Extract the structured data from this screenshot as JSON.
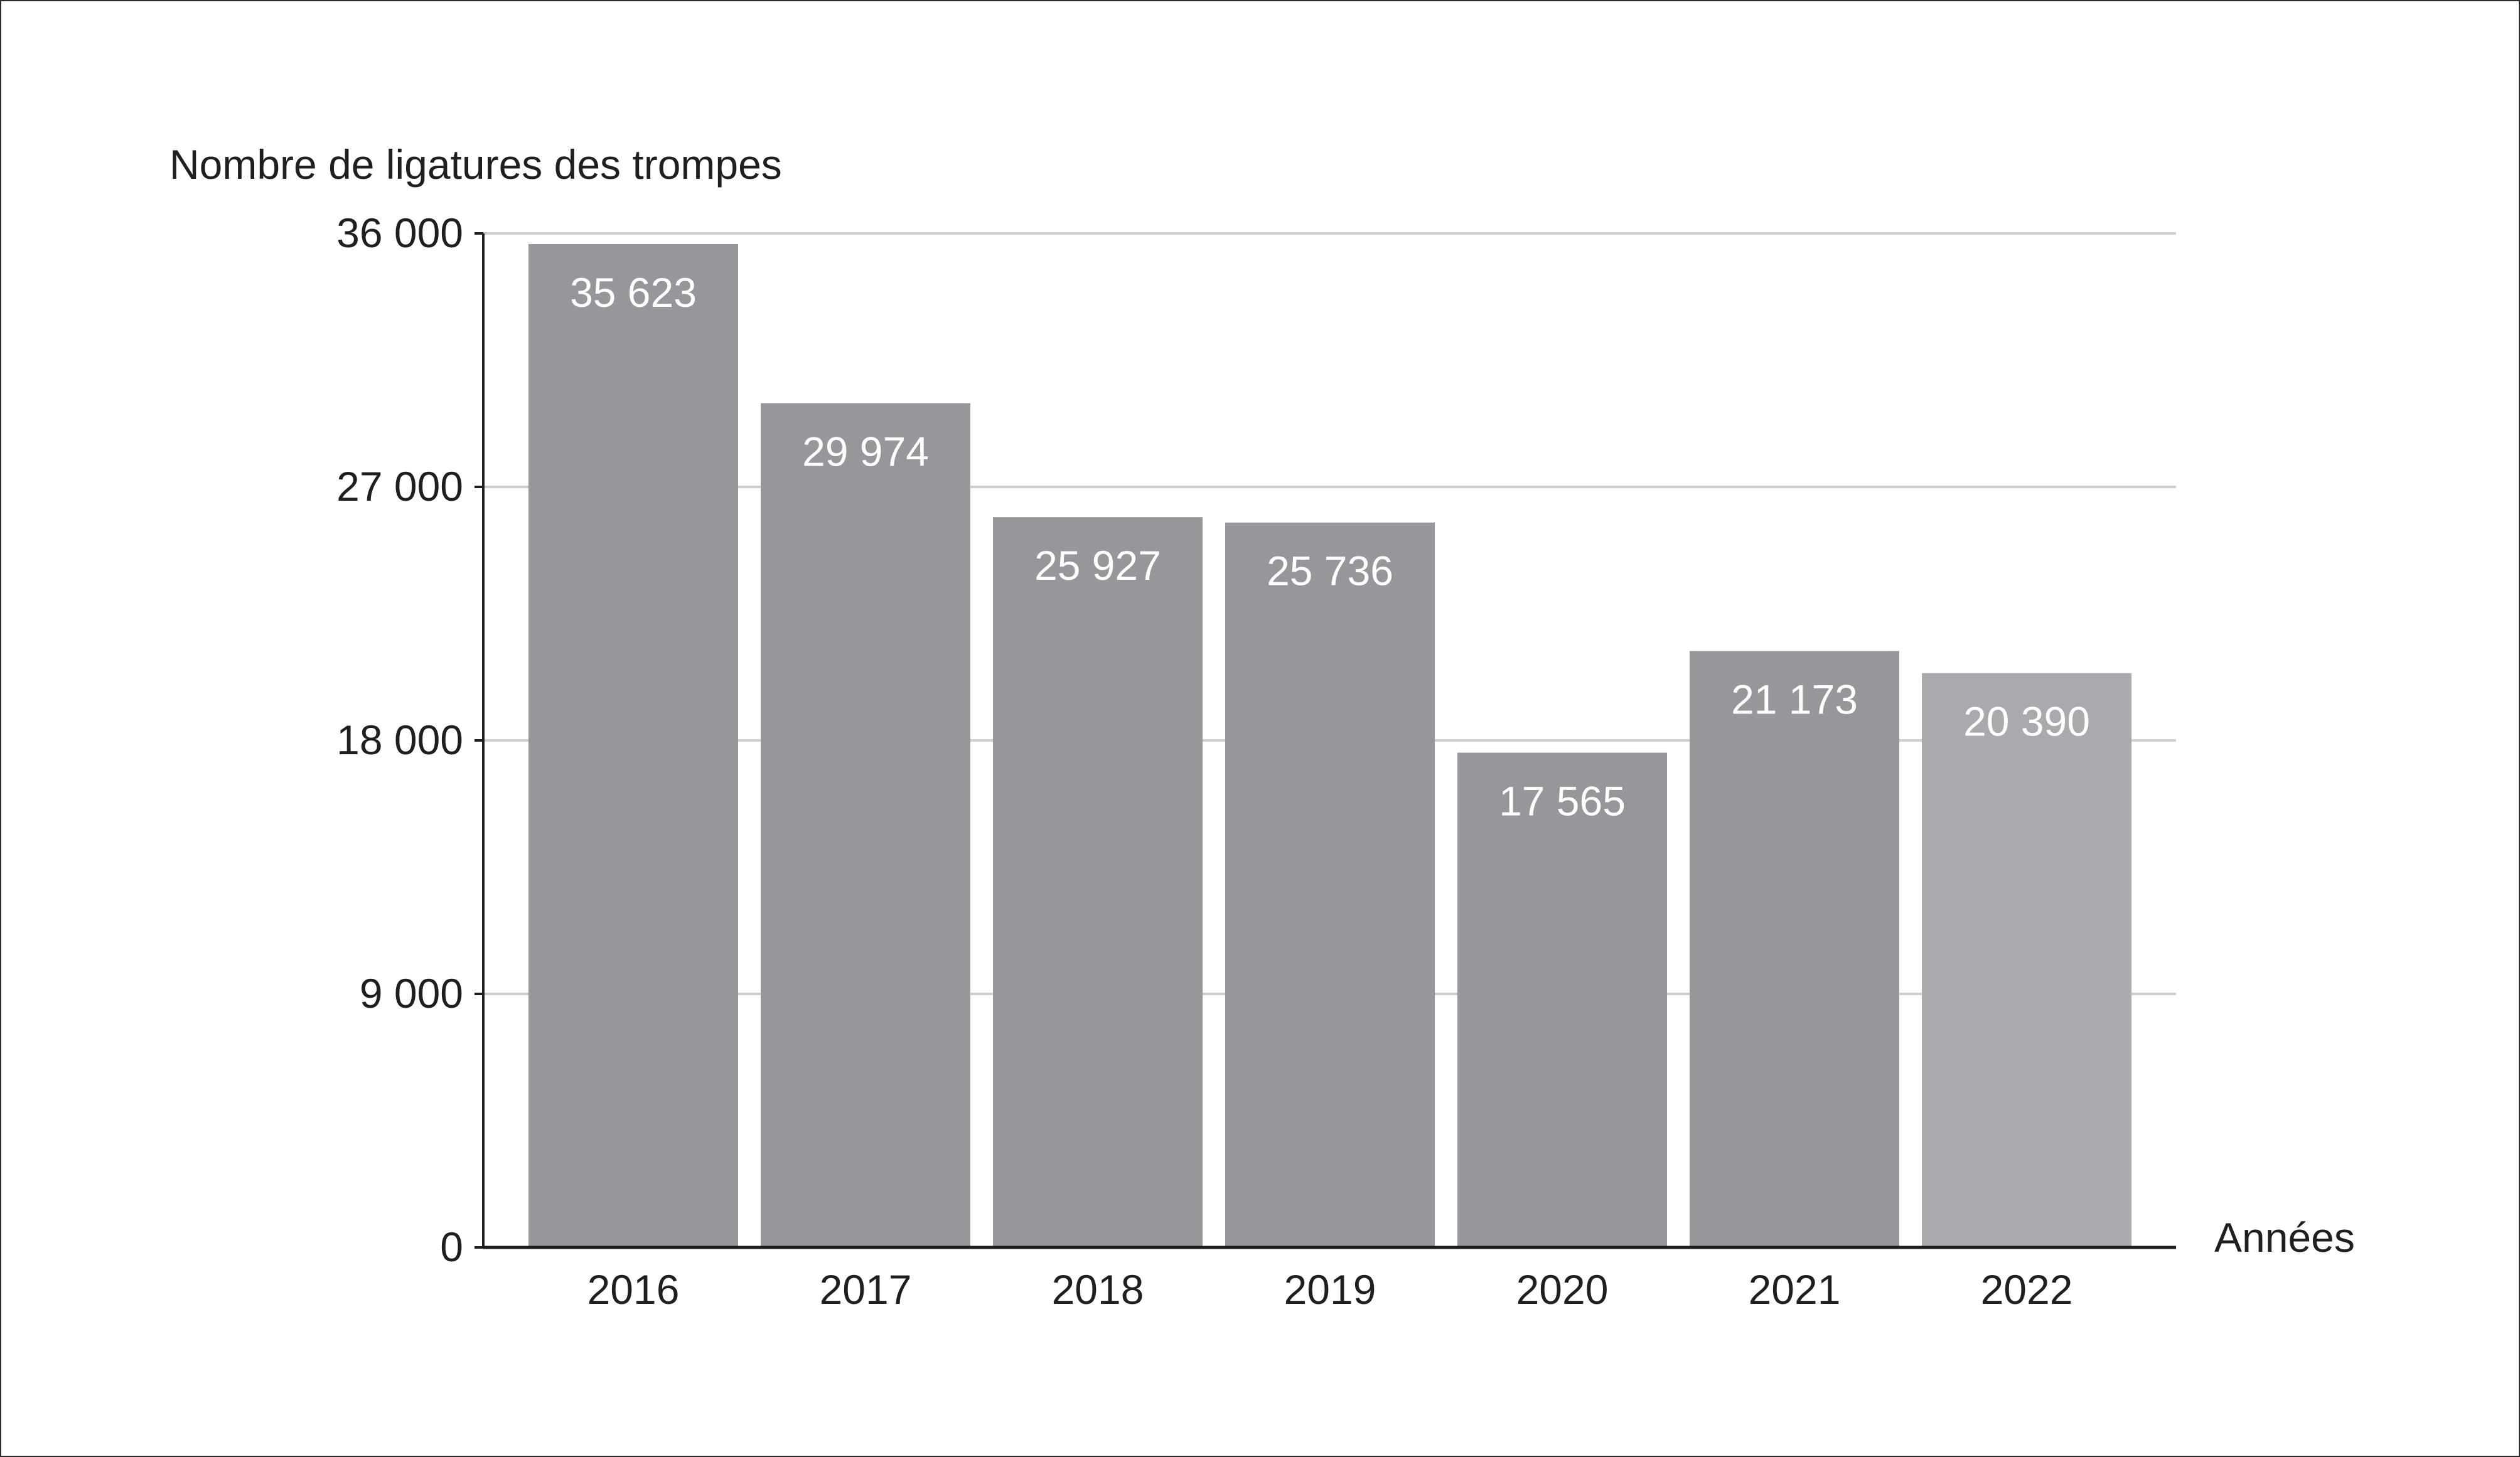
{
  "chart_data": {
    "type": "bar",
    "title": "",
    "ylabel": "Nombre de ligatures des trompes",
    "xlabel": "Années",
    "categories": [
      "2016",
      "2017",
      "2018",
      "2019",
      "2020",
      "2021",
      "2022"
    ],
    "values": [
      35623,
      29974,
      25927,
      25736,
      17565,
      21173,
      20390
    ],
    "value_labels": [
      "35 623",
      "29 974",
      "25 927",
      "25 736",
      "17 565",
      "21 173",
      "20 390"
    ],
    "ylim": [
      0,
      36000
    ],
    "yticks": [
      0,
      9000,
      18000,
      27000,
      36000
    ],
    "ytick_labels": [
      "0",
      "9 000",
      "18 000",
      "27 000",
      "36 000"
    ],
    "grid": true,
    "legend": "none",
    "colors": {
      "bar": "#96979b",
      "bar_highlight": "#a9aaad",
      "gridline": "#cfcfcf",
      "axis": "#1f1f1f",
      "data_label": "#ffffff"
    },
    "highlight_index": 6
  }
}
